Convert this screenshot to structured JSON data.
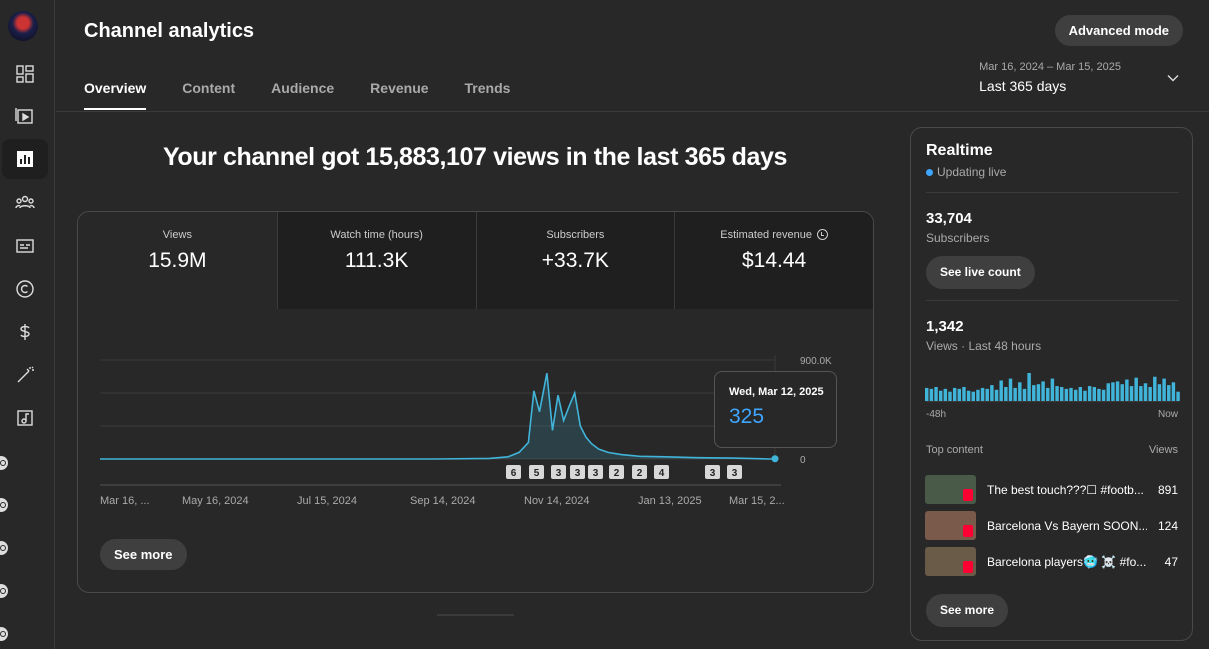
{
  "header": {
    "title": "Channel analytics",
    "advanced_mode": "Advanced mode",
    "tabs": [
      "Overview",
      "Content",
      "Audience",
      "Revenue",
      "Trends"
    ],
    "date_range": "Mar 16, 2024 – Mar 15, 2025",
    "period": "Last 365 days"
  },
  "headline": "Your channel got 15,883,107 views in the last 365 days",
  "metrics": [
    {
      "label": "Views",
      "value": "15.9M"
    },
    {
      "label": "Watch time (hours)",
      "value": "111.3K"
    },
    {
      "label": "Subscribers",
      "value": "+33.7K"
    },
    {
      "label": "Estimated revenue",
      "value": "$14.44"
    }
  ],
  "chart_data": {
    "type": "line",
    "y_ticks": [
      "900.0K",
      "0"
    ],
    "ylim": [
      0,
      900000
    ],
    "x_tick_labels": [
      "Mar 16, ...",
      "May 16, 2024",
      "Jul 15, 2024",
      "Sep 14, 2024",
      "Nov 14, 2024",
      "Jan 13, 2025",
      "Mar 15, 2..."
    ],
    "dates": [
      "2024-03-16",
      "2024-04-15",
      "2024-05-15",
      "2024-06-14",
      "2024-07-14",
      "2024-08-13",
      "2024-09-12",
      "2024-10-12",
      "2024-10-22",
      "2024-10-28",
      "2024-11-02",
      "2024-11-05",
      "2024-11-08",
      "2024-11-12",
      "2024-11-15",
      "2024-11-18",
      "2024-11-21",
      "2024-11-24",
      "2024-11-27",
      "2024-11-30",
      "2024-12-03",
      "2024-12-06",
      "2024-12-10",
      "2024-12-15",
      "2024-12-22",
      "2025-01-01",
      "2025-01-15",
      "2025-02-01",
      "2025-02-20",
      "2025-03-12",
      "2025-03-15"
    ],
    "values": [
      0,
      0,
      0,
      0,
      0,
      0,
      0,
      5000,
      20000,
      60000,
      150000,
      620000,
      430000,
      780000,
      260000,
      580000,
      350000,
      480000,
      600000,
      300000,
      200000,
      140000,
      90000,
      60000,
      40000,
      25000,
      20000,
      12000,
      8000,
      325,
      2000
    ],
    "video_markers": [
      {
        "label": "6"
      },
      {
        "label": "5"
      },
      {
        "label": "3"
      },
      {
        "label": "3"
      },
      {
        "label": "3"
      },
      {
        "label": "2"
      },
      {
        "label": "2"
      },
      {
        "label": "4"
      },
      {
        "label": "3"
      },
      {
        "label": "3"
      }
    ],
    "tooltip": {
      "date": "Wed, Mar 12, 2025",
      "value": "325"
    },
    "color": "#41b4d9"
  },
  "see_more": "See more",
  "realtime": {
    "title": "Realtime",
    "updating": "Updating live",
    "subscribers": "33,704",
    "subscribers_label": "Subscribers",
    "see_live_count": "See live count",
    "views": "1,342",
    "views_label": "Views · Last 48 hours",
    "axis_left": "-48h",
    "axis_right": "Now",
    "bars": [
      14,
      13,
      15,
      11,
      13,
      10,
      14,
      13,
      15,
      11,
      10,
      12,
      14,
      13,
      17,
      12,
      22,
      15,
      24,
      14,
      20,
      13,
      30,
      17,
      18,
      21,
      14,
      24,
      16,
      15,
      13,
      14,
      12,
      15,
      11,
      16,
      15,
      13,
      12,
      19,
      20,
      21,
      18,
      23,
      16,
      25,
      16,
      19,
      15,
      26,
      18,
      24,
      17,
      20,
      10
    ],
    "top_content_label": "Top content",
    "views_col_label": "Views",
    "top_content": [
      {
        "title": "The best touch???☐ #footb...",
        "views": "891",
        "thumb": "#4a5a48"
      },
      {
        "title": "Barcelona Vs Bayern SOON...",
        "views": "124",
        "thumb": "#7a5a4a"
      },
      {
        "title": "Barcelona players🥶 ☠️ #fo...",
        "views": "47",
        "thumb": "#6a5a48"
      }
    ],
    "see_more": "See more"
  }
}
